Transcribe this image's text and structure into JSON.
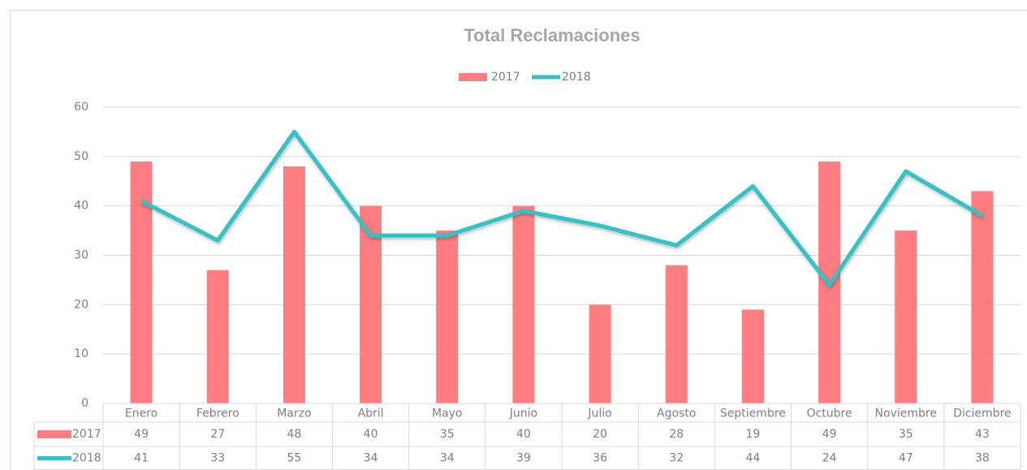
{
  "chart_data": {
    "type": "bar_line",
    "title": "Total Reclamaciones",
    "categories": [
      "Enero",
      "Febrero",
      "Marzo",
      "Abril",
      "Mayo",
      "Junio",
      "Julio",
      "Agosto",
      "Septiembre",
      "Octubre",
      "Noviembre",
      "Diciembre"
    ],
    "series": [
      {
        "name": "2017",
        "type": "bar",
        "color": "#ff7c80",
        "values": [
          49,
          27,
          48,
          40,
          35,
          40,
          20,
          28,
          19,
          49,
          35,
          43
        ]
      },
      {
        "name": "2018",
        "type": "line",
        "color": "#33c3c6",
        "values": [
          41,
          33,
          55,
          34,
          34,
          39,
          36,
          32,
          44,
          24,
          47,
          38
        ]
      }
    ],
    "ylim": [
      0,
      60
    ],
    "yticks": [
      0,
      10,
      20,
      30,
      40,
      50,
      60
    ],
    "grid": true,
    "legend": "top",
    "data_table": true
  }
}
